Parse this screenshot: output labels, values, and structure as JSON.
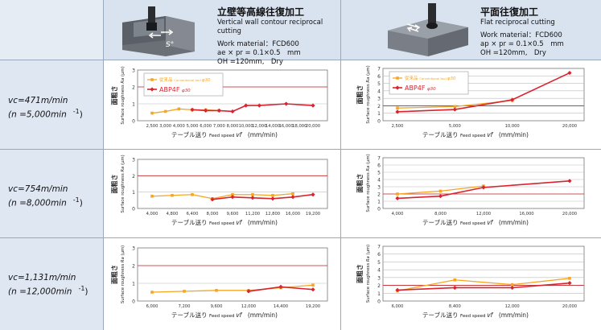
{
  "header": {
    "left": {
      "jp_title": "立壁等高線往復加工",
      "en_title": "Vertical wall contour reciprocal cutting",
      "material": "Work material：FCD600",
      "params": "ae × pr = 0.1×0.5　mm",
      "oh": "OH =120mm,　Dry"
    },
    "right": {
      "jp_title": "平面往復加工",
      "en_title": "Flat reciprocal cutting",
      "material": "Work material：FCD600",
      "params": "ap × pr = 0.1×0.5　mm",
      "oh": "OH =120mm,　Dry"
    }
  },
  "rows": [
    {
      "vc": "vc=471m/min",
      "n": "(n =5,000min",
      "unit": "-1",
      "close": ")"
    },
    {
      "vc": "vc=754m/min",
      "n": "(n =8,000min",
      "unit": "-1",
      "close": ")"
    },
    {
      "vc": "vc=1,131m/min",
      "n": "(n =12,000min",
      "unit": "-1",
      "close": ")"
    }
  ],
  "colors": {
    "conventional": "#f5a623",
    "abp4f": "#d9232e",
    "reference": "#c0262d",
    "grid": "#9a9a9a"
  },
  "chart_data": [
    {
      "type": "line",
      "position": "row1-left",
      "xlabel": "テーブル送り Feed speed vf　(mm/min)",
      "ylabel": "面粗さ Surface roughness Ra (μm)",
      "ylim": [
        0,
        3
      ],
      "yticks": [
        0,
        1,
        2,
        3
      ],
      "reference_line": 2,
      "categories": [
        "2,500",
        "4,000",
        "6,000",
        "8,000",
        "10,000",
        "12,000",
        "16,000",
        "20,000"
      ],
      "x": [
        2500,
        4000,
        6000,
        8000,
        10000,
        12000,
        16000,
        20000
      ],
      "xticks": [
        2500,
        3000,
        4000,
        5000,
        6000,
        7000,
        8000,
        10000,
        12000,
        14000,
        16000,
        18000,
        20000
      ],
      "xticklabels": [
        "2,500",
        "3,000",
        "4,000",
        "5,000",
        "6,000",
        "7,000",
        "8,000",
        "10,000",
        "12,000",
        "14,000",
        "16,000",
        "18,000",
        "20,000"
      ],
      "legend": "top-left",
      "series": [
        {
          "name": "従来品 Conventional tool φ30",
          "x": [
            2500,
            3000,
            4000,
            5000,
            6000,
            7000
          ],
          "values": [
            0.45,
            0.55,
            0.7,
            0.65,
            0.65,
            0.6
          ]
        },
        {
          "name": "ABP4F φ30",
          "x": [
            5000,
            6000,
            7000,
            8000,
            10000,
            12000,
            16000,
            20000
          ],
          "values": [
            0.65,
            0.6,
            0.6,
            0.55,
            0.9,
            0.9,
            1.0,
            0.9
          ]
        }
      ]
    },
    {
      "type": "line",
      "position": "row1-right",
      "xlabel": "テーブル送り Feed speed vf　(mm/min)",
      "ylabel": "面粗さ Surface roughness Ra (μm)",
      "ylim": [
        0,
        7
      ],
      "yticks": [
        0,
        1,
        2,
        3,
        4,
        5,
        6,
        7
      ],
      "reference_line": 2,
      "xticks": [
        2500,
        5000,
        10000,
        20000
      ],
      "xticklabels": [
        "2,500",
        "5,000",
        "10,000",
        "20,000"
      ],
      "legend": "top-left",
      "series": [
        {
          "name": "従来品 Conventional tool φ30",
          "x": [
            2500,
            5000,
            10000
          ],
          "values": [
            1.7,
            1.9,
            2.7
          ]
        },
        {
          "name": "ABP4F φ30",
          "x": [
            2500,
            5000,
            10000,
            20000
          ],
          "values": [
            1.2,
            1.5,
            2.8,
            6.4
          ]
        }
      ]
    },
    {
      "type": "line",
      "position": "row2-left",
      "ylim": [
        0,
        3
      ],
      "yticks": [
        0,
        1,
        2,
        3
      ],
      "reference_line": 2,
      "xticks": [
        4000,
        4800,
        6400,
        8000,
        9600,
        11200,
        12800,
        16000,
        19200
      ],
      "xticklabels": [
        "4,000",
        "4,800",
        "6,400",
        "8,000",
        "9,600",
        "11,200",
        "12,800",
        "16,000",
        "19,200"
      ],
      "series": [
        {
          "name": "従来品",
          "x": [
            4000,
            4800,
            6400,
            8000,
            9600,
            11200,
            12800,
            16000
          ],
          "values": [
            0.75,
            0.8,
            0.85,
            0.6,
            0.85,
            0.85,
            0.8,
            0.9
          ]
        },
        {
          "name": "ABP4F",
          "x": [
            8000,
            9600,
            11200,
            12800,
            16000,
            19200
          ],
          "values": [
            0.55,
            0.7,
            0.65,
            0.6,
            0.7,
            0.85
          ]
        }
      ]
    },
    {
      "type": "line",
      "position": "row2-right",
      "ylim": [
        0,
        7
      ],
      "yticks": [
        0,
        1,
        2,
        3,
        4,
        5,
        6,
        7
      ],
      "reference_line": 2,
      "xticks": [
        4000,
        8000,
        12000,
        16000,
        20000
      ],
      "xticklabels": [
        "4,000",
        "8,000",
        "12,000",
        "16,000",
        "20,000"
      ],
      "series": [
        {
          "name": "従来品",
          "x": [
            4000,
            8000,
            12000
          ],
          "values": [
            2.0,
            2.4,
            3.1
          ]
        },
        {
          "name": "ABP4F",
          "x": [
            4000,
            8000,
            12000,
            20000
          ],
          "values": [
            1.4,
            1.7,
            2.9,
            3.8
          ]
        }
      ]
    },
    {
      "type": "line",
      "position": "row3-left",
      "ylim": [
        0,
        3
      ],
      "yticks": [
        0,
        1,
        2,
        3
      ],
      "reference_line": 2,
      "xticks": [
        6000,
        7200,
        9600,
        12000,
        14400,
        19200
      ],
      "xticklabels": [
        "6,000",
        "7,200",
        "9,600",
        "12,000",
        "14,400",
        "19,200"
      ],
      "series": [
        {
          "name": "従来品",
          "x": [
            6000,
            7200,
            9600,
            12000,
            14400,
            19200
          ],
          "values": [
            0.5,
            0.55,
            0.6,
            0.6,
            0.75,
            0.9
          ]
        },
        {
          "name": "ABP4F",
          "x": [
            12000,
            14400,
            19200
          ],
          "values": [
            0.55,
            0.8,
            0.65
          ]
        }
      ]
    },
    {
      "type": "line",
      "position": "row3-right",
      "ylim": [
        0,
        7
      ],
      "yticks": [
        0,
        1,
        2,
        3,
        4,
        5,
        6,
        7
      ],
      "reference_line": 2,
      "xticks": [
        6000,
        8400,
        12000,
        20000
      ],
      "xticklabels": [
        "6,000",
        "8,400",
        "12,000",
        "20,000"
      ],
      "series": [
        {
          "name": "従来品",
          "x": [
            6000,
            8400,
            12000,
            20000
          ],
          "values": [
            1.3,
            2.7,
            2.1,
            2.9
          ]
        },
        {
          "name": "ABP4F",
          "x": [
            6000,
            8400,
            12000,
            20000
          ],
          "values": [
            1.4,
            1.7,
            1.7,
            2.3
          ]
        }
      ]
    }
  ],
  "axis_text": {
    "xlabel_jp": "テーブル送り",
    "xlabel_en": "Feed speed",
    "xlabel_var": "vf",
    "xlabel_unit": "(mm/min)",
    "ylabel_jp": "面粗さ",
    "ylabel_en": "Surface roughness",
    "ylabel_var": "Ra",
    "ylabel_unit": "(μm)"
  },
  "legend_text": {
    "conventional_jp": "従来品",
    "conventional_en": "Conventional tool",
    "conventional_size": "φ30",
    "abp4f": "ABP4F",
    "abp4f_size": "φ30"
  }
}
